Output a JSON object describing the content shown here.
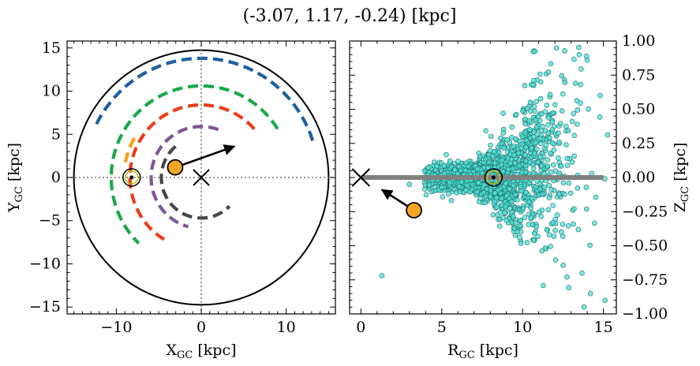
{
  "figure": {
    "title": "(-3.07, 1.17, -0.24) [kpc]"
  },
  "chart_data": [
    {
      "type": "scatter",
      "name": "galactic-plane-xy",
      "xlabel_main": "X",
      "xlabel_sub": "GC",
      "xlabel_unit": " [kpc]",
      "ylabel_main": "Y",
      "ylabel_sub": "GC",
      "ylabel_unit": " [kpc]",
      "xlim": [
        -15.8,
        15.8
      ],
      "ylim": [
        -15.8,
        15.8
      ],
      "xticks": [
        -10,
        0,
        10
      ],
      "yticks": [
        -15,
        -10,
        -5,
        0,
        5,
        10,
        15
      ],
      "xtick_labels": [
        "−10",
        "0",
        "10"
      ],
      "ytick_labels": [
        "−15",
        "−10",
        "−5",
        "0",
        "5",
        "10",
        "15"
      ],
      "grid": false,
      "disk_edge_radius": 15,
      "galactic_center": [
        0,
        0
      ],
      "sun_position": [
        -8.2,
        0
      ],
      "object_position": [
        -3.07,
        1.17
      ],
      "velocity_arrow_tip": [
        3.9,
        3.6
      ],
      "spiral_arms": [
        {
          "color": "#1f5fa0",
          "radius": 13.8,
          "start_deg": 18,
          "end_deg": 156
        },
        {
          "color": "#19a94a",
          "radius": 10.6,
          "start_deg": 32,
          "end_deg": 226
        },
        {
          "color": "#ed3c1a",
          "radius": 8.4,
          "start_deg": 42,
          "end_deg": 243
        },
        {
          "color": "#7d5796",
          "radius": 5.9,
          "start_deg": 70,
          "end_deg": 255
        },
        {
          "color": "#454545",
          "radius": 4.7,
          "start_deg": 130,
          "end_deg": 315
        },
        {
          "color": "#f5a11a",
          "radius": 9.1,
          "start_deg": 150,
          "end_deg": 170
        }
      ]
    },
    {
      "type": "scatter",
      "name": "r-z-plane",
      "xlabel_main": "R",
      "xlabel_sub": "GC",
      "xlabel_unit": " [kpc]",
      "ylabel_main": "Z",
      "ylabel_sub": "GC",
      "ylabel_unit": " [kpc]",
      "xlim": [
        -0.7,
        15.8
      ],
      "ylim": [
        -1.0,
        1.0
      ],
      "xticks": [
        0,
        5,
        10,
        15
      ],
      "yticks": [
        1.0,
        0.75,
        0.5,
        0.25,
        0.0,
        -0.25,
        -0.5,
        -0.75,
        -1.0
      ],
      "xtick_labels": [
        "0",
        "5",
        "10",
        "15"
      ],
      "ytick_labels": [
        "1.00",
        "0.75",
        "0.50",
        "0.25",
        "0.00",
        "−0.25",
        "−0.50",
        "−0.75",
        "−1.00"
      ],
      "grid": false,
      "galactic_center": [
        0,
        0
      ],
      "sun_position": [
        8.2,
        0
      ],
      "object_position": [
        3.28,
        -0.24
      ],
      "velocity_arrow_tip": [
        1.3,
        -0.09
      ],
      "plane_line": [
        0,
        15
      ],
      "star_cloud": {
        "color": "#4fe0d6",
        "edge": "#1f6f6c",
        "count": 1600,
        "center_r": 8.2,
        "r_min": 3.9,
        "r_max": 15.3
      }
    }
  ],
  "colors": {
    "object": "#f5a623",
    "sun_ring": "#c8b400",
    "plane": "#808080",
    "cloud": "#4fe0d6"
  }
}
